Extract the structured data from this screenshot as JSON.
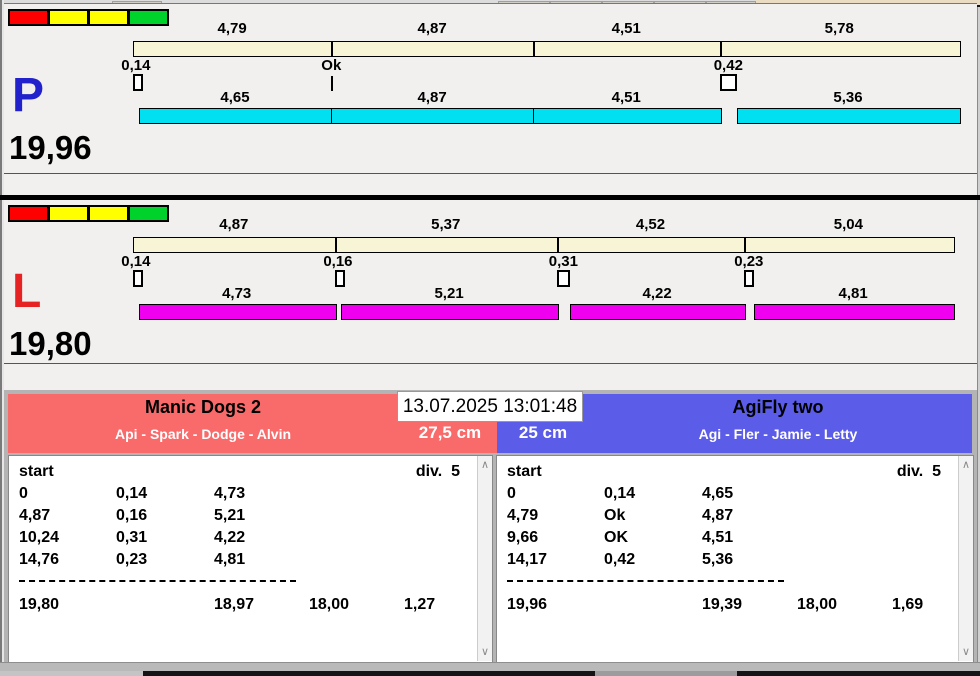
{
  "clock": "13.07.2025 13:01:48",
  "colors": {
    "split_bar": "#f8f4d6",
    "lane_p_run": "#00e0f0",
    "lane_l_run": "#ef00ef",
    "lane_p_letter": "#2222cc",
    "lane_l_letter": "#e62222",
    "team_left_header": "#f96b6b",
    "team_right_header": "#5b5ce8"
  },
  "race_panels": [
    {
      "letter": "P",
      "letter_color": "#2222cc",
      "total": "19,96",
      "total_s": 19.96,
      "run_color": "#00e0f0",
      "traffic_lights": [
        "#ff0000",
        "#ffff00",
        "#ffff00",
        "#00d22c"
      ],
      "legs": [
        {
          "split": "4,79",
          "split_s": 4.79,
          "cross": "0,14",
          "cross_s": 0.14,
          "marker": "box",
          "dog": "4,65",
          "dog_s": 4.65
        },
        {
          "split": "4,87",
          "split_s": 4.87,
          "cross": "Ok",
          "cross_s": 0,
          "marker": "tick",
          "dog": "4,87",
          "dog_s": 4.87
        },
        {
          "split": "4,51",
          "split_s": 4.51,
          "cross": "",
          "cross_s": 0,
          "marker": "none",
          "dog": "4,51",
          "dog_s": 4.51
        },
        {
          "split": "5,78",
          "split_s": 5.78,
          "cross": "0,42",
          "cross_s": 0.42,
          "marker": "box",
          "dog": "5,36",
          "dog_s": 5.36
        }
      ]
    },
    {
      "letter": "L",
      "letter_color": "#e62222",
      "total": "19,80",
      "total_s": 19.8,
      "run_color": "#ef00ef",
      "traffic_lights": [
        "#ff0000",
        "#ffff00",
        "#ffff00",
        "#00d22c"
      ],
      "legs": [
        {
          "split": "4,87",
          "split_s": 4.87,
          "cross": "0,14",
          "cross_s": 0.14,
          "marker": "box",
          "dog": "4,73",
          "dog_s": 4.73
        },
        {
          "split": "5,37",
          "split_s": 5.37,
          "cross": "0,16",
          "cross_s": 0.16,
          "marker": "box",
          "dog": "5,21",
          "dog_s": 5.21
        },
        {
          "split": "4,52",
          "split_s": 4.52,
          "cross": "0,31",
          "cross_s": 0.31,
          "marker": "box",
          "dog": "4,22",
          "dog_s": 4.22
        },
        {
          "split": "5,04",
          "split_s": 5.04,
          "cross": "0,23",
          "cross_s": 0.23,
          "marker": "box",
          "dog": "4,81",
          "dog_s": 4.81
        }
      ]
    }
  ],
  "teams": [
    {
      "name": "Manic Dogs 2",
      "dogs": "Api - Spark - Dodge - Alvin",
      "height_class": "27,5 cm",
      "header_color": "#f96b6b",
      "table": {
        "start_label": "start",
        "div_label": "div.  5",
        "rows": [
          [
            "0",
            "0,14",
            "4,73"
          ],
          [
            "4,87",
            "0,16",
            "5,21"
          ],
          [
            "10,24",
            "0,31",
            "4,22"
          ],
          [
            "14,76",
            "0,23",
            "4,81"
          ]
        ],
        "totals": [
          "19,80",
          "18,97",
          "18,00",
          "1,27"
        ]
      }
    },
    {
      "name": "AgiFly two",
      "dogs": "Agi - Fler - Jamie - Letty",
      "height_class": "25 cm",
      "header_color": "#5b5ce8",
      "table": {
        "start_label": "start",
        "div_label": "div.  5",
        "rows": [
          [
            "0",
            "0,14",
            "4,65"
          ],
          [
            "4,79",
            "Ok",
            "4,87"
          ],
          [
            "9,66",
            "OK",
            "4,51"
          ],
          [
            "14,17",
            "0,42",
            "5,36"
          ]
        ],
        "totals": [
          "19,96",
          "19,39",
          "18,00",
          "1,69"
        ]
      }
    }
  ],
  "scrollbar": {
    "up_glyph": "∧",
    "down_glyph": "∨"
  }
}
